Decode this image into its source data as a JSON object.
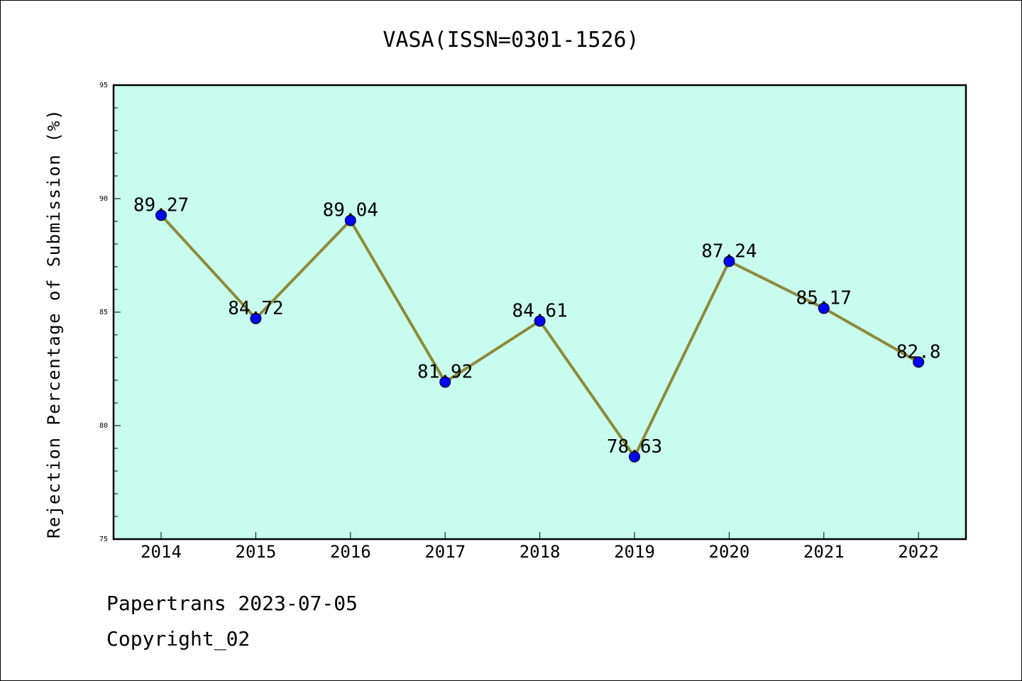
{
  "chart_data": {
    "type": "line",
    "title": "VASA(ISSN=0301-1526)",
    "xlabel": "",
    "ylabel": "Rejection Percentage of Submission (%)",
    "categories": [
      "2014",
      "2015",
      "2016",
      "2017",
      "2018",
      "2019",
      "2020",
      "2021",
      "2022"
    ],
    "series": [
      {
        "values": [
          89.27,
          84.72,
          89.04,
          81.92,
          84.61,
          78.63,
          87.24,
          85.17,
          82.8
        ],
        "data_labels": [
          "89.27",
          "84.72",
          "89.04",
          "81.92",
          "84.61",
          "78.63",
          "87.24",
          "85.17",
          "82.8"
        ]
      }
    ],
    "ylim": [
      75,
      95
    ],
    "yticks": [
      "75",
      "80",
      "85",
      "90",
      "95"
    ],
    "grid": false,
    "legend": "none",
    "colors": {
      "plot_background": "#c8fcee",
      "line": "#8b8b3a",
      "marker": "#0000ff"
    }
  },
  "footer": {
    "source": "Papertrans 2023-07-05",
    "copyright": "Copyright_02"
  }
}
